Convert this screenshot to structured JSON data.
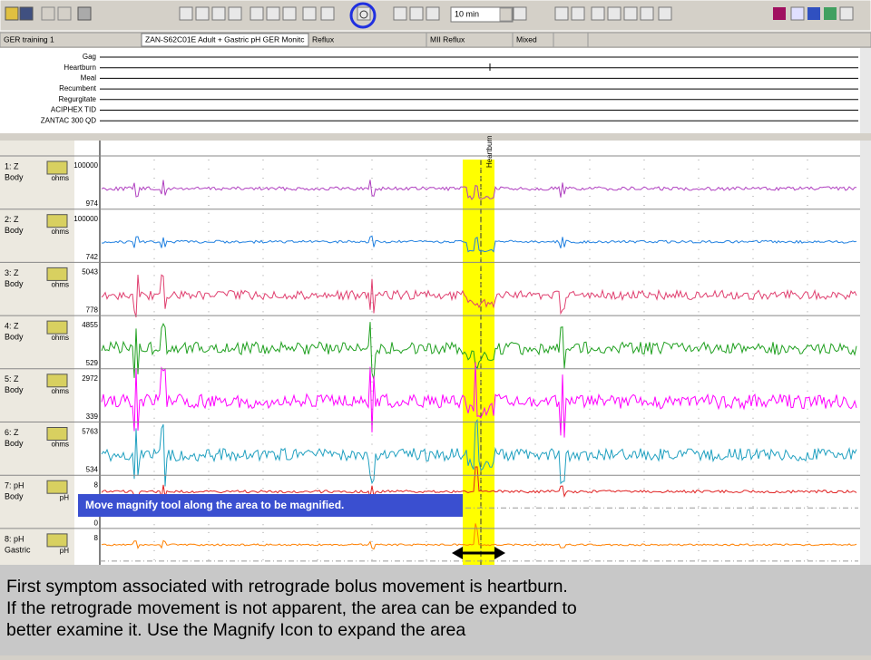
{
  "toolbar": {
    "interval": "10 min"
  },
  "info_bar": {
    "study": "GER training 1",
    "protocol": "ZAN-S62C01E  Adult + Gastric pH GER Monitc",
    "analysis": "Reflux",
    "type": "MII Reflux",
    "category": "Mixed"
  },
  "events": [
    "Gag",
    "Heartburn",
    "Meal",
    "Recumbent",
    "Regurgitate",
    "ACIPHEX TID",
    "ZANTAC 300 QD"
  ],
  "channels": [
    {
      "label": "1: Z",
      "site": "Body",
      "unit": "ohms",
      "top": 100000,
      "bottom": 974,
      "color": "#b040c0"
    },
    {
      "label": "2: Z",
      "site": "Body",
      "unit": "ohms",
      "top": 100000,
      "bottom": 742,
      "color": "#2080e0"
    },
    {
      "label": "3: Z",
      "site": "Body",
      "unit": "ohms",
      "top": 5043,
      "bottom": 778,
      "color": "#e04070"
    },
    {
      "label": "4: Z",
      "site": "Body",
      "unit": "ohms",
      "top": 4855,
      "bottom": 529,
      "color": "#20a020"
    },
    {
      "label": "5: Z",
      "site": "Body",
      "unit": "ohms",
      "top": 2972,
      "bottom": 339,
      "color": "#ff00ff"
    },
    {
      "label": "6: Z",
      "site": "Body",
      "unit": "ohms",
      "top": 5763,
      "bottom": 534,
      "color": "#20a0c0"
    },
    {
      "label": "7: pH",
      "site": "Body",
      "unit": "pH",
      "top": 8,
      "bottom": 0,
      "color": "#e02020"
    },
    {
      "label": "8: pH",
      "site": "Gastric",
      "unit": "pH",
      "top": 8,
      "color": "#ff8000"
    }
  ],
  "marker": "Heartburn",
  "tooltip": "Move magnify tool along the area to be magnified.",
  "caption": [
    "First symptom associated with retrograde bolus movement is heartburn.",
    "If the retrograde movement is not apparent, the area can be expanded to",
    "better examine it. Use the Magnify Icon to expand the area"
  ]
}
